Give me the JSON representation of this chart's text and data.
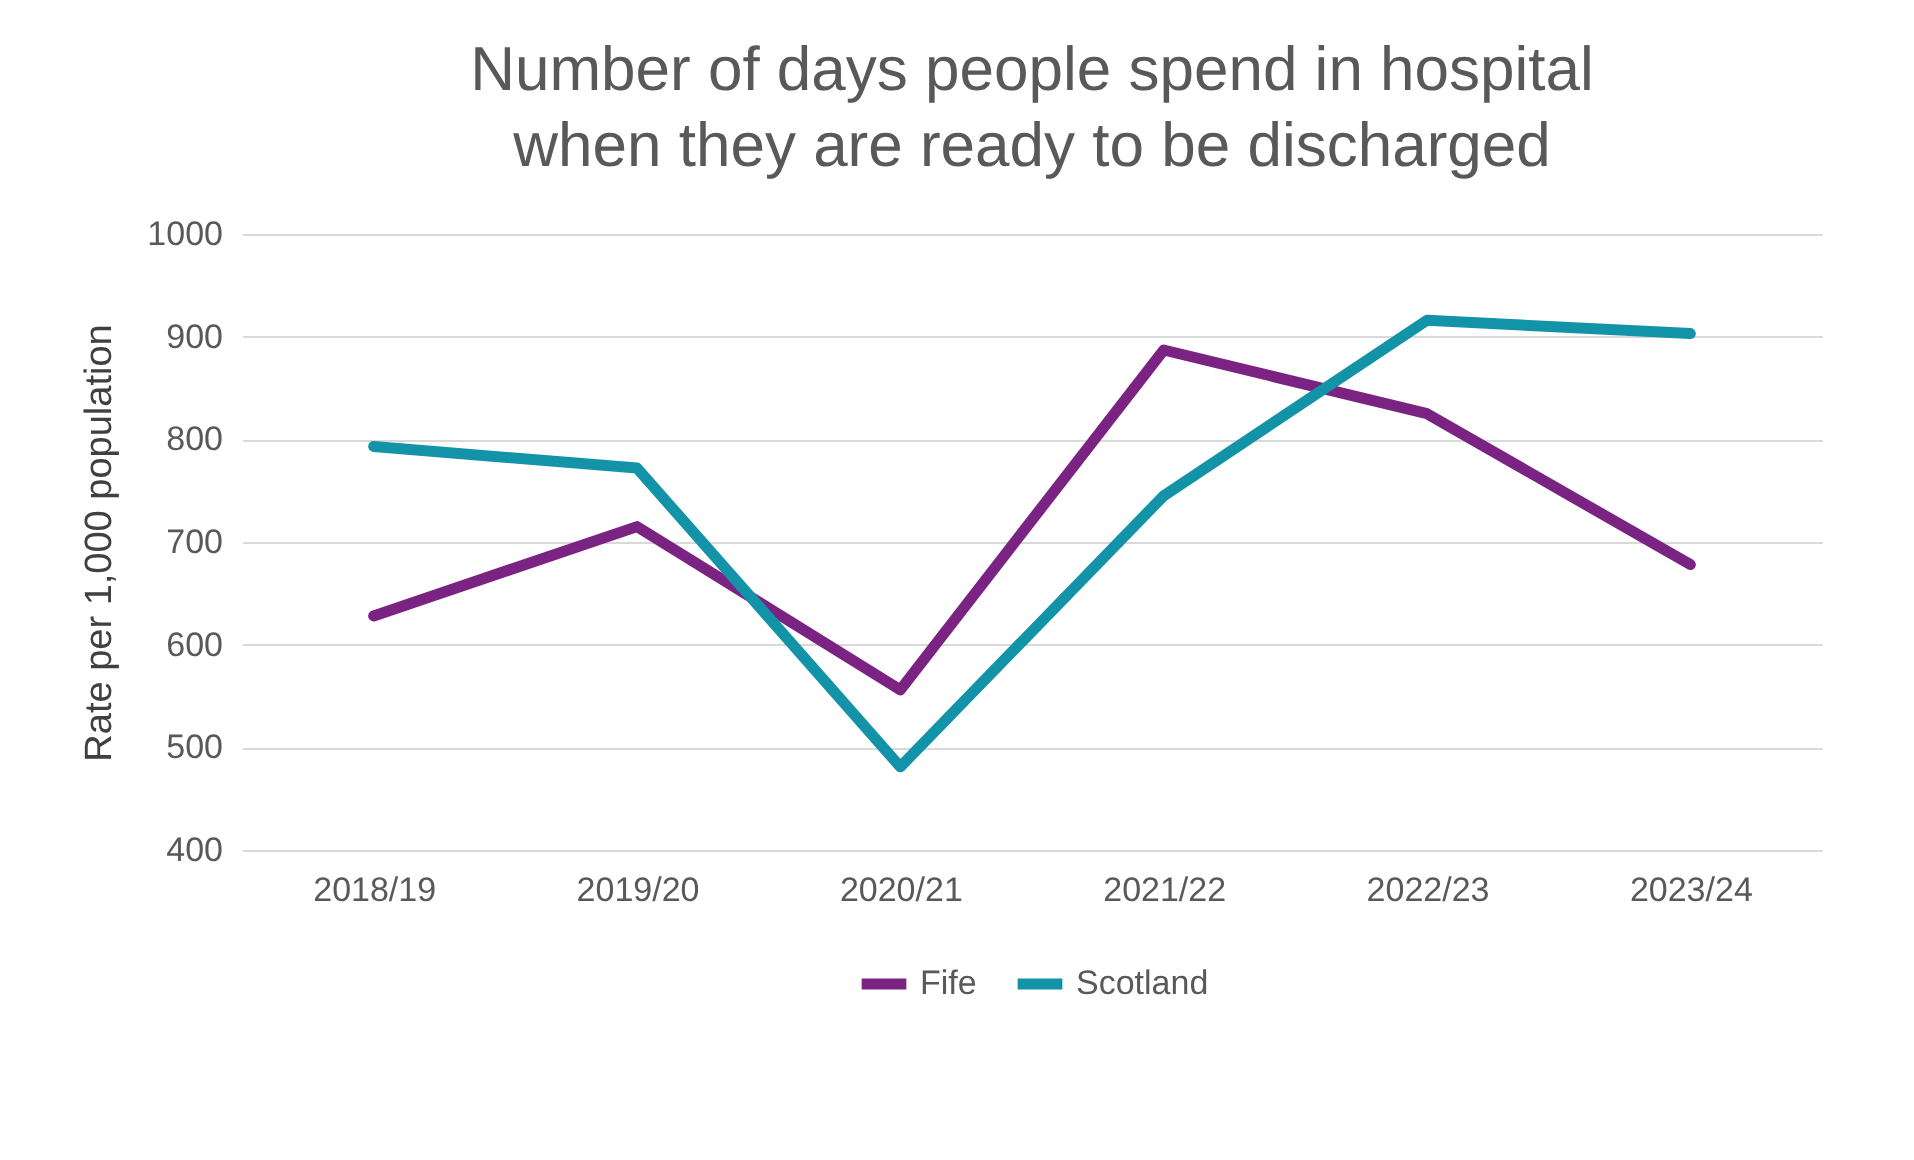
{
  "chart_data": {
    "type": "line",
    "title": [
      "Number of days people spend in hospital",
      "when they are ready to be discharged"
    ],
    "ylabel": "Rate per 1,000 population",
    "categories": [
      "2018/19",
      "2019/20",
      "2020/21",
      "2021/22",
      "2022/23",
      "2023/24"
    ],
    "series": [
      {
        "name": "Fife",
        "color": "#7b2382",
        "values": [
          628,
          715,
          556,
          887,
          825,
          678
        ]
      },
      {
        "name": "Scotland",
        "color": "#1393a8",
        "values": [
          793,
          772,
          481,
          745,
          916,
          903
        ]
      }
    ],
    "ylim": [
      400,
      1000
    ],
    "yticks": [
      400,
      500,
      600,
      700,
      800,
      900,
      1000
    ],
    "grid": "y",
    "legend": "bottom",
    "line_style": "solid",
    "marker": "none"
  }
}
